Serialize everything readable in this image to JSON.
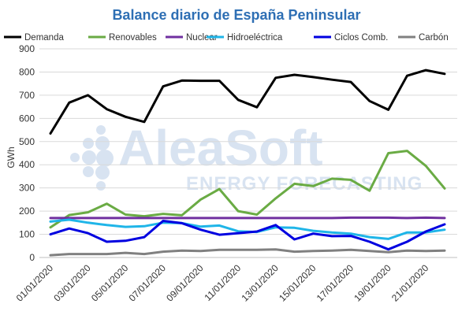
{
  "chart_data": {
    "type": "line",
    "title": "Balance diario de España Peninsular",
    "ylabel": "GWh",
    "xlabel": "",
    "ylim": [
      0,
      900
    ],
    "yticks": [
      0,
      100,
      200,
      300,
      400,
      500,
      600,
      700,
      800,
      900
    ],
    "grid": true,
    "legend_position": "top",
    "x": [
      "01/01/2020",
      "02/01/2020",
      "03/01/2020",
      "04/01/2020",
      "05/01/2020",
      "06/01/2020",
      "07/01/2020",
      "08/01/2020",
      "09/01/2020",
      "10/01/2020",
      "11/01/2020",
      "12/01/2020",
      "13/01/2020",
      "14/01/2020",
      "15/01/2020",
      "16/01/2020",
      "17/01/2020",
      "18/01/2020",
      "19/01/2020",
      "20/01/2020",
      "21/01/2020",
      "22/01/2020"
    ],
    "x_tick_labels": [
      "01/01/2020",
      "03/01/2020",
      "05/01/2020",
      "07/01/2020",
      "09/01/2020",
      "11/01/2020",
      "13/01/2020",
      "15/01/2020",
      "17/01/2020",
      "19/01/2020",
      "21/01/2020"
    ],
    "series": [
      {
        "name": "Demanda",
        "color": "#000000",
        "values": [
          535,
          668,
          700,
          640,
          607,
          585,
          738,
          763,
          762,
          762,
          680,
          648,
          775,
          788,
          778,
          767,
          757,
          675,
          637,
          784,
          808,
          792
        ]
      },
      {
        "name": "Renovables",
        "color": "#6aab44",
        "values": [
          130,
          183,
          195,
          232,
          185,
          178,
          188,
          182,
          250,
          295,
          200,
          185,
          255,
          318,
          308,
          340,
          335,
          288,
          450,
          460,
          395,
          298
        ]
      },
      {
        "name": "Nuclear",
        "color": "#7030a0",
        "values": [
          170,
          170,
          170,
          170,
          170,
          170,
          170,
          170,
          170,
          170,
          170,
          170,
          170,
          170,
          170,
          170,
          172,
          172,
          172,
          170,
          172,
          170
        ]
      },
      {
        "name": "Hidroeléctrica",
        "color": "#1fb5e8",
        "values": [
          155,
          163,
          150,
          140,
          132,
          135,
          150,
          148,
          133,
          138,
          113,
          110,
          130,
          128,
          115,
          108,
          103,
          88,
          80,
          108,
          108,
          120
        ]
      },
      {
        "name": "Ciclos Comb.",
        "color": "#0000e0",
        "values": [
          100,
          125,
          105,
          68,
          72,
          88,
          158,
          148,
          120,
          98,
          105,
          112,
          140,
          78,
          103,
          92,
          93,
          68,
          35,
          68,
          112,
          143
        ]
      },
      {
        "name": "Carbón",
        "color": "#808080",
        "values": [
          10,
          15,
          15,
          15,
          20,
          15,
          25,
          30,
          28,
          33,
          33,
          33,
          35,
          25,
          28,
          30,
          33,
          28,
          23,
          30,
          28,
          30
        ]
      }
    ]
  },
  "watermark": {
    "brand": "AleaSoft",
    "tagline": "ENERGY FORECASTING"
  }
}
